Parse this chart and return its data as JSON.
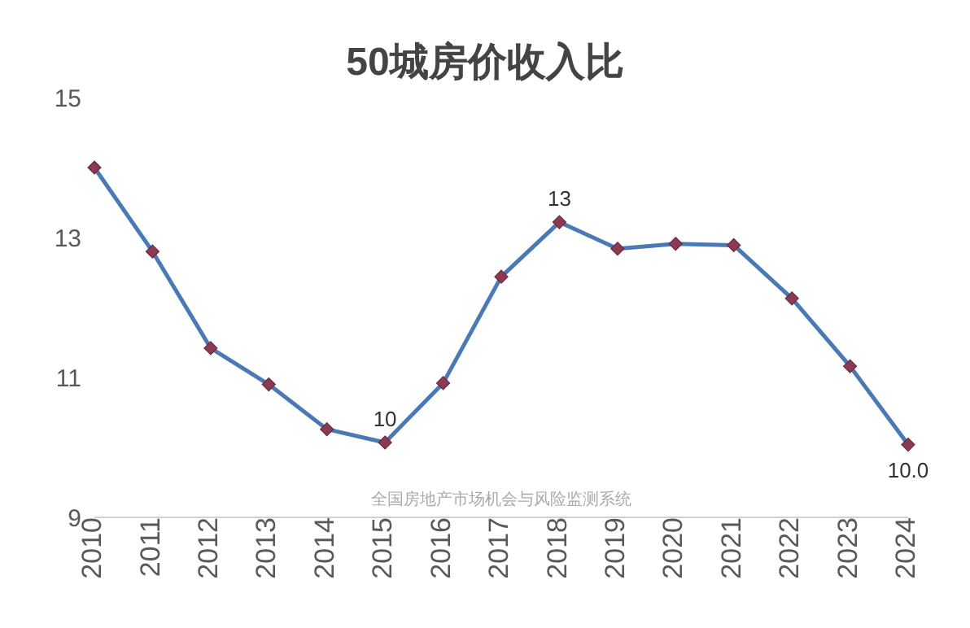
{
  "chart_data": {
    "type": "line",
    "title": "50城房价收入比",
    "categories": [
      "2010",
      "2011",
      "2012",
      "2013",
      "2014",
      "2015",
      "2016",
      "2017",
      "2018",
      "2019",
      "2020",
      "2021",
      "2022",
      "2023",
      "2024"
    ],
    "series": [
      {
        "color": "#4a7ab5",
        "values": [
          14.0,
          12.8,
          11.42,
          10.9,
          10.26,
          10.07,
          10.92,
          12.44,
          13.22,
          12.84,
          12.91,
          12.89,
          12.13,
          11.16,
          10.04
        ],
        "value_labels": [
          null,
          null,
          null,
          null,
          null,
          "10",
          null,
          null,
          "13",
          null,
          null,
          null,
          null,
          null,
          "10.0"
        ]
      }
    ],
    "ylim": [
      9,
      15
    ],
    "yticks": [
      9,
      11,
      13,
      15
    ],
    "marker": "diamond",
    "line_style": "solid",
    "annotations": [
      "全国房地产市场机会与风险监测系统"
    ]
  }
}
